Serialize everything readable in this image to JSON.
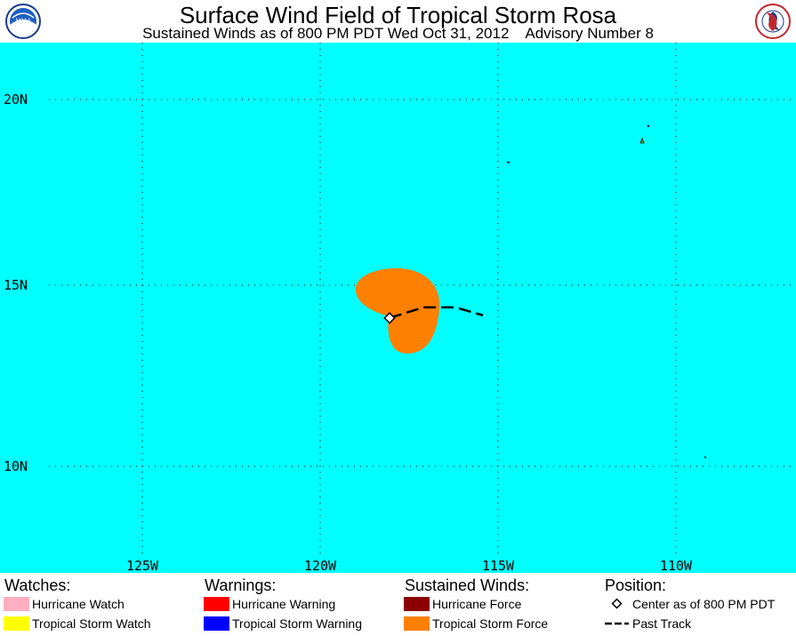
{
  "header": {
    "title": "Surface Wind Field of Tropical Storm Rosa",
    "subtitle": "Sustained Winds as of 800 PM PDT Wed Oct 31, 2012    Advisory Number 8",
    "left_logo": "NOAA",
    "right_logo": "NATIONAL WEATHER SERVICE"
  },
  "map": {
    "ocean_color": "#00ffff",
    "lat_labels": [
      "20N",
      "15N",
      "10N"
    ],
    "lon_labels": [
      "125W",
      "120W",
      "115W",
      "110W"
    ],
    "storm": {
      "center_label": "Center as of 800 PM PDT",
      "wind_field": "Tropical Storm Force",
      "wind_color": "#ff8000"
    }
  },
  "legend": {
    "watches": {
      "heading": "Watches:",
      "items": [
        {
          "label": "Hurricane Watch",
          "color": "#ffb0c0"
        },
        {
          "label": "Tropical Storm Watch",
          "color": "#ffff00"
        }
      ]
    },
    "warnings": {
      "heading": "Warnings:",
      "items": [
        {
          "label": "Hurricane Warning",
          "color": "#ff0000"
        },
        {
          "label": "Tropical Storm Warning",
          "color": "#0000ff"
        }
      ]
    },
    "winds": {
      "heading": "Sustained Winds:",
      "items": [
        {
          "label": "Hurricane Force",
          "color": "#8b0000"
        },
        {
          "label": "Tropical Storm Force",
          "color": "#ff8000"
        }
      ]
    },
    "position": {
      "heading": "Position:",
      "items": [
        {
          "label": "Center as of 800 PM PDT",
          "icon": "diamond-icon"
        },
        {
          "label": "Past Track",
          "icon": "dashed-line-icon"
        }
      ]
    }
  }
}
